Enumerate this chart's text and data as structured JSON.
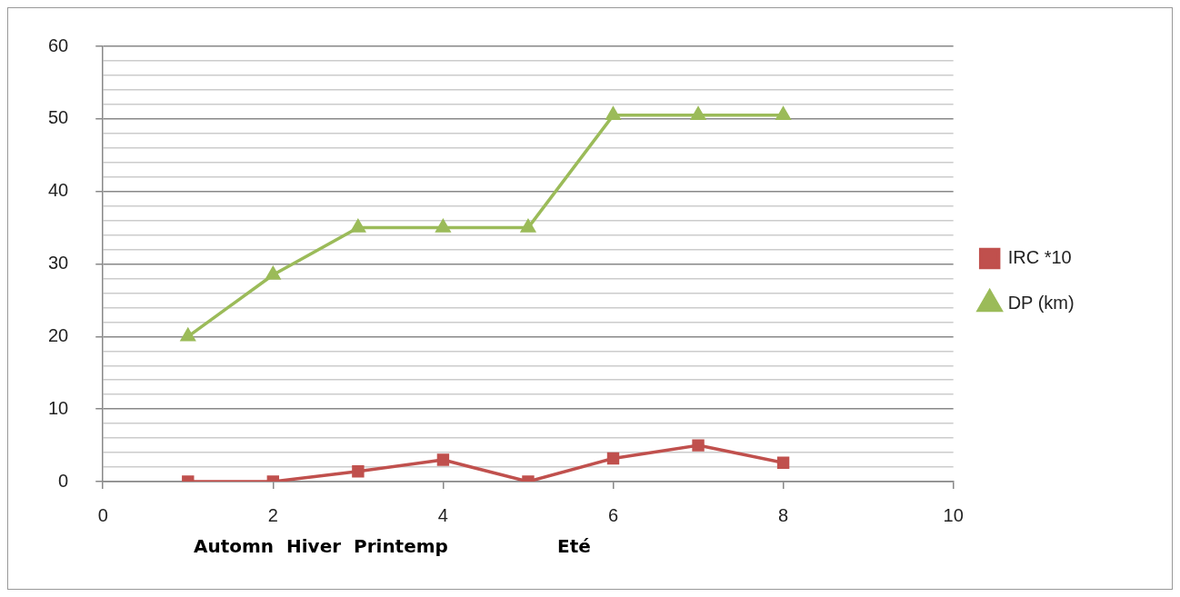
{
  "chart_data": {
    "type": "line",
    "x": [
      1,
      2,
      3,
      4,
      5,
      6,
      7,
      8
    ],
    "series": [
      {
        "name": "IRC *10",
        "color": "#c0504d",
        "marker": "square",
        "values": [
          0,
          0,
          1.4,
          3,
          0,
          3.2,
          5,
          2.6
        ]
      },
      {
        "name": "DP (km)",
        "color": "#9bbb59",
        "marker": "triangle",
        "values": [
          20,
          28.5,
          35,
          35,
          35,
          50.5,
          50.5,
          50.5
        ]
      }
    ],
    "xlim": [
      0,
      10
    ],
    "xticks": [
      0,
      2,
      4,
      6,
      8,
      10
    ],
    "ylim": [
      0,
      60
    ],
    "yticks": [
      0,
      {
        "value": 2,
        "label": null
      },
      {
        "value": 4,
        "label": null
      },
      {
        "value": 6,
        "label": null
      },
      {
        "value": 8,
        "label": null
      },
      10,
      {
        "value": 12,
        "label": null
      },
      {
        "value": 14,
        "label": null
      },
      {
        "value": 16,
        "label": null
      },
      {
        "value": 18,
        "label": null
      },
      20,
      {
        "value": 22,
        "label": null
      },
      {
        "value": 24,
        "label": null
      },
      {
        "value": 26,
        "label": null
      },
      {
        "value": 28,
        "label": null
      },
      30,
      {
        "value": 32,
        "label": null
      },
      {
        "value": 34,
        "label": null
      },
      {
        "value": 36,
        "label": null
      },
      {
        "value": 38,
        "label": null
      },
      40,
      {
        "value": 42,
        "label": null
      },
      {
        "value": 44,
        "label": null
      },
      {
        "value": 46,
        "label": null
      },
      {
        "value": 48,
        "label": null
      },
      50,
      {
        "value": 52,
        "label": null
      },
      {
        "value": 54,
        "label": null
      },
      {
        "value": 56,
        "label": null
      },
      {
        "value": 58,
        "label": null
      },
      60
    ],
    "grid": "y",
    "legend": "right",
    "line_style": "solid",
    "annotations": [
      "Automn  Hiver  Printemp",
      "Eté"
    ]
  }
}
